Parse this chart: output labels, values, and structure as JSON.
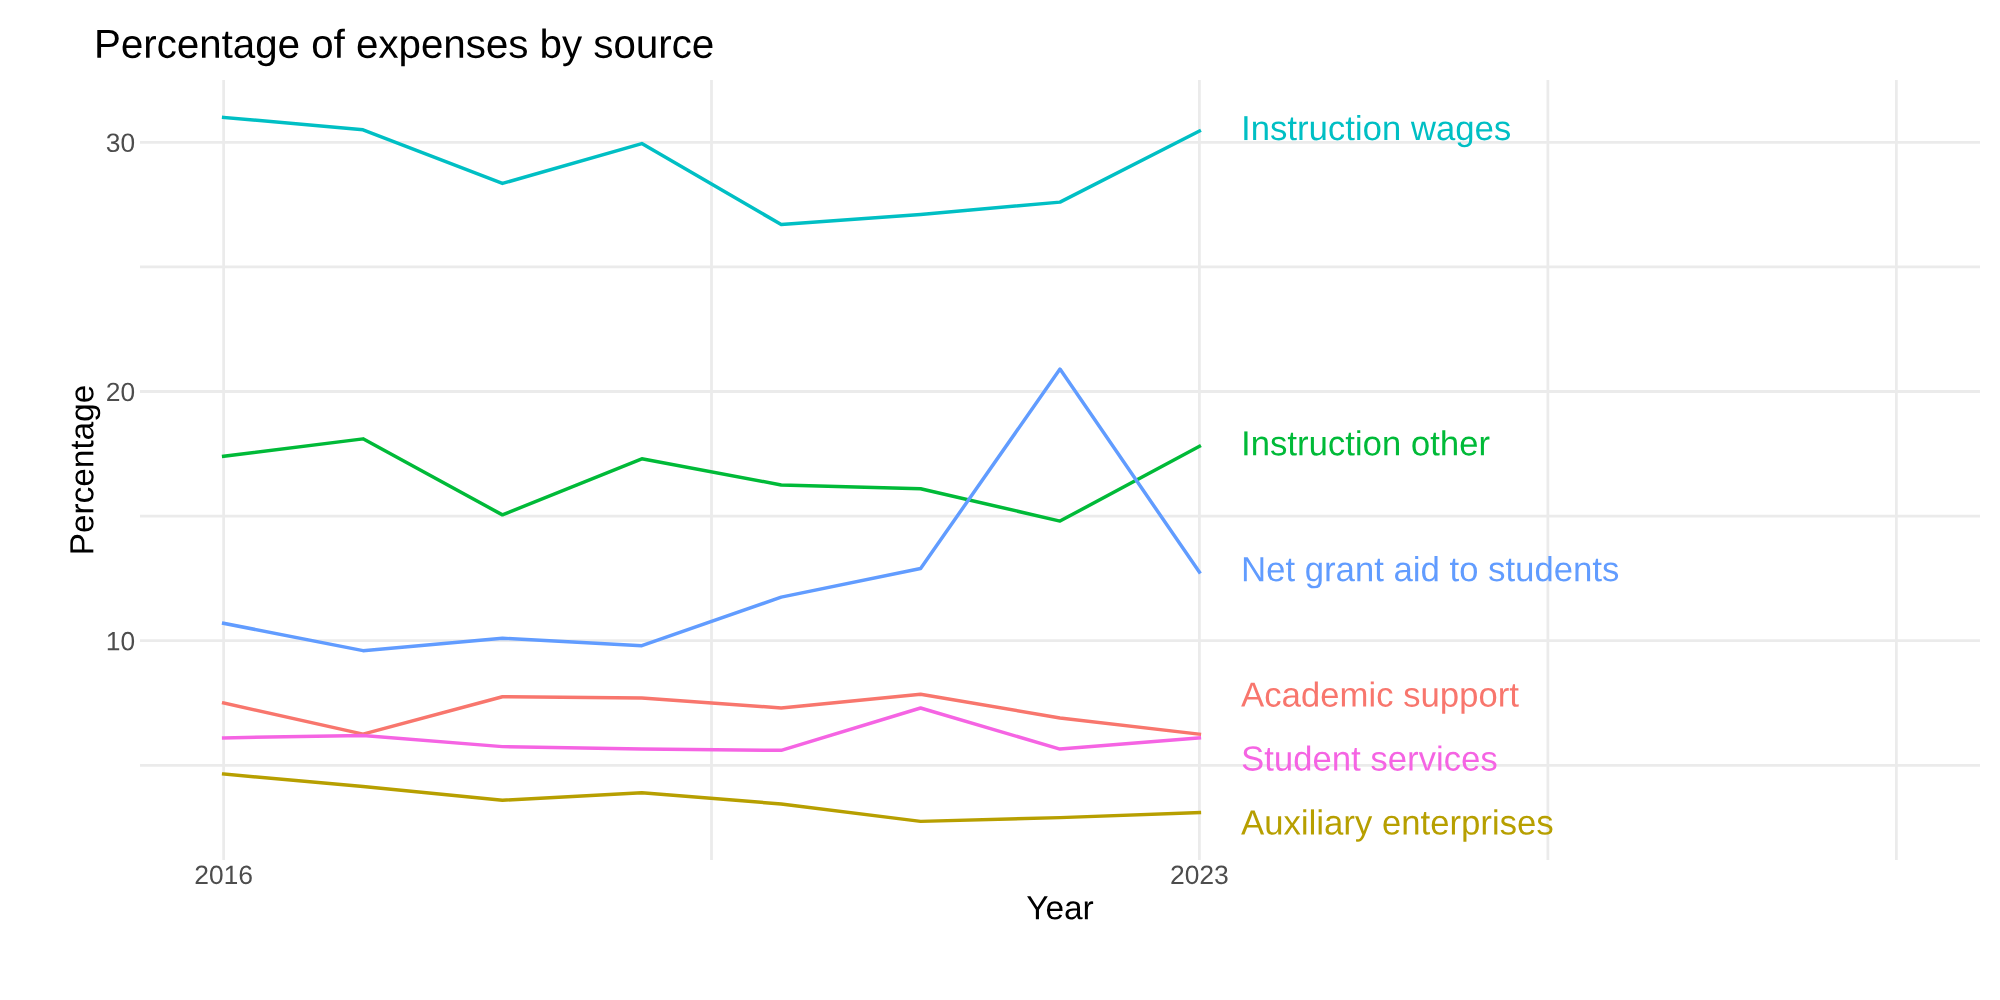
{
  "chart_data": {
    "type": "line",
    "title": "Percentage of expenses by source",
    "xlabel": "Year",
    "ylabel": "Percentage",
    "x": [
      2016,
      2017,
      2018,
      2019,
      2020,
      2021,
      2022,
      2023
    ],
    "series": [
      {
        "name": "Instruction wages",
        "color": "#00bfc4",
        "values": [
          31.0,
          30.5,
          28.35,
          29.95,
          26.7,
          27.1,
          27.6,
          30.45
        ]
      },
      {
        "name": "Instruction other",
        "color": "#00ba38",
        "values": [
          17.4,
          18.1,
          15.05,
          17.3,
          16.25,
          16.1,
          14.8,
          17.8
        ]
      },
      {
        "name": "Net grant aid to students",
        "color": "#619cff",
        "values": [
          10.7,
          9.6,
          10.1,
          9.8,
          11.75,
          12.9,
          20.9,
          12.75
        ]
      },
      {
        "name": "Academic support",
        "color": "#f8766d",
        "values": [
          7.5,
          6.25,
          7.75,
          7.7,
          7.3,
          7.85,
          6.9,
          6.25
        ]
      },
      {
        "name": "Student services",
        "color": "#f564e3",
        "values": [
          6.1,
          6.2,
          5.75,
          5.65,
          5.6,
          7.3,
          5.65,
          6.1
        ]
      },
      {
        "name": "Auxiliary enterprises",
        "color": "#b79f00",
        "values": [
          4.65,
          4.15,
          3.6,
          3.9,
          3.45,
          2.75,
          2.9,
          3.1
        ]
      }
    ],
    "xlim": [
      2015.4,
      2028.6
    ],
    "ylim": [
      1.2,
      32.5
    ],
    "xticks": [
      2016,
      {
        "value": 2019.5,
        "label": null
      },
      2023,
      {
        "value": 2025.5,
        "label": null
      },
      {
        "value": 2028,
        "label": null
      }
    ],
    "yticks": [
      {
        "value": 5,
        "label": null
      },
      10,
      {
        "value": 15,
        "label": null
      },
      20,
      {
        "value": 25,
        "label": null
      },
      30
    ],
    "grid": true,
    "legend": false,
    "marker": "none",
    "line_style": "solid"
  }
}
